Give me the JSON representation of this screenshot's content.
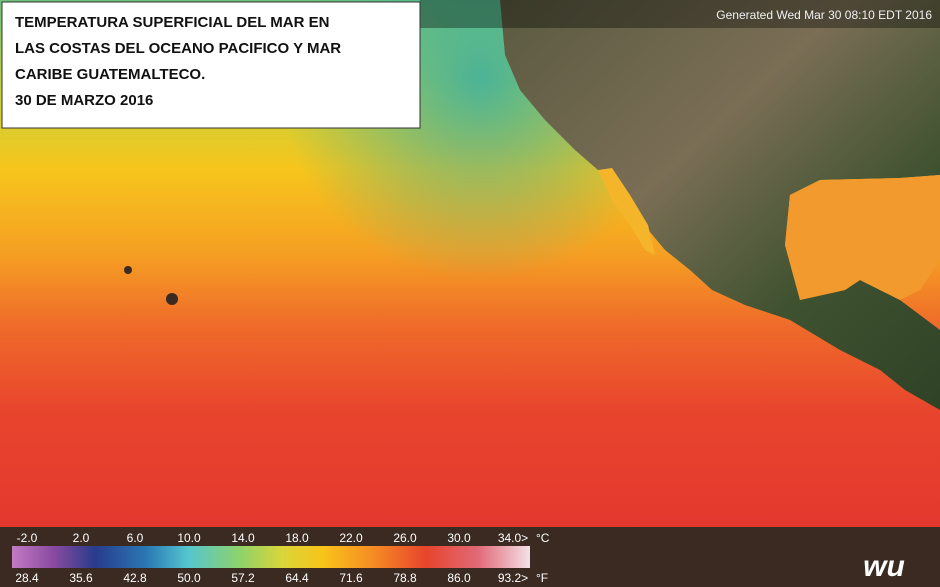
{
  "title": {
    "lines": [
      "TEMPERATURA SUPERFICIAL DEL MAR EN",
      "LAS COSTAS DEL OCEANO PACIFICO Y MAR",
      "CARIBE GUATEMALTECO.",
      "30 DE MARZO 2016"
    ]
  },
  "generated": "Generated Wed Mar 30 08:10 EDT 2016",
  "legend": {
    "celsius": [
      "-2.0",
      "2.0",
      "6.0",
      "10.0",
      "14.0",
      "18.0",
      "22.0",
      "26.0",
      "30.0",
      "34.0>"
    ],
    "celsius_unit": "°C",
    "fahrenheit": [
      "28.4",
      "35.6",
      "42.8",
      "50.0",
      "57.2",
      "64.4",
      "71.6",
      "78.8",
      "86.0",
      "93.2>"
    ],
    "fahrenheit_unit": "°F"
  },
  "logo": "wu"
}
